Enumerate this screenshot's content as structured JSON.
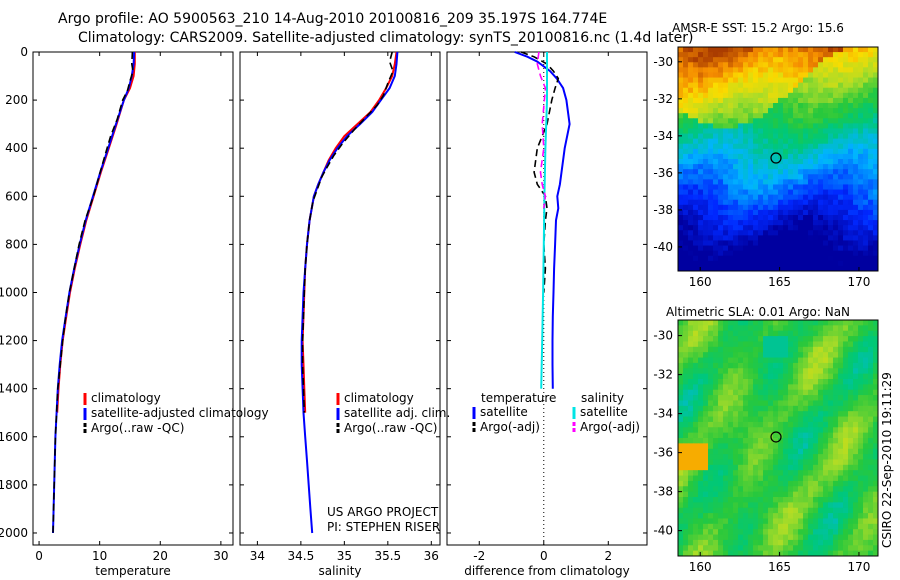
{
  "title_line1": "Argo profile: AO 5900563_210 14-Aug-2010 20100816_209 35.197S 164.774E",
  "title_line2": "Climatology: CARS2009. Satellite-adjusted climatology: synTS_20100816.nc (1.4d later)",
  "side_text": "CSIRO 22-Sep-2010 19:11:29",
  "colors": {
    "clim": "#ff0000",
    "sat": "#0000ff",
    "argo": "#000000",
    "tsat": "#00e5e5",
    "targo": "#ff00ff"
  },
  "chart_data": [
    {
      "type": "line",
      "id": "temperature",
      "xlabel": "temperature",
      "xlim": [
        -1,
        32
      ],
      "ylim": [
        2050,
        0
      ],
      "xticks": [
        0,
        10,
        20,
        30
      ],
      "yticks": [
        0,
        200,
        400,
        600,
        800,
        1000,
        1200,
        1400,
        1600,
        1800,
        2000
      ],
      "series": [
        {
          "name": "climatology",
          "color": "clim",
          "points": [
            [
              15.8,
              0
            ],
            [
              15.8,
              50
            ],
            [
              15.6,
              100
            ],
            [
              15.0,
              150
            ],
            [
              14.0,
              200
            ],
            [
              12.8,
              300
            ],
            [
              11.5,
              400
            ],
            [
              10.2,
              500
            ],
            [
              9.0,
              600
            ],
            [
              7.8,
              700
            ],
            [
              6.8,
              800
            ],
            [
              5.9,
              900
            ],
            [
              5.1,
              1000
            ],
            [
              4.5,
              1100
            ],
            [
              3.9,
              1200
            ],
            [
              3.5,
              1300
            ],
            [
              3.2,
              1400
            ],
            [
              3.0,
              1500
            ]
          ]
        },
        {
          "name": "satellite-adjusted climatology",
          "color": "sat",
          "points": [
            [
              15.7,
              0
            ],
            [
              15.6,
              50
            ],
            [
              15.3,
              100
            ],
            [
              14.8,
              150
            ],
            [
              14.0,
              200
            ],
            [
              12.7,
              300
            ],
            [
              11.4,
              400
            ],
            [
              10.1,
              500
            ],
            [
              8.9,
              600
            ],
            [
              7.7,
              700
            ],
            [
              6.7,
              800
            ],
            [
              5.8,
              900
            ],
            [
              5.0,
              1000
            ],
            [
              4.4,
              1100
            ],
            [
              3.8,
              1200
            ],
            [
              3.4,
              1300
            ],
            [
              3.1,
              1400
            ],
            [
              2.9,
              1500
            ],
            [
              2.7,
              1600
            ],
            [
              2.6,
              1700
            ],
            [
              2.5,
              1800
            ],
            [
              2.4,
              1900
            ],
            [
              2.3,
              2000
            ]
          ]
        },
        {
          "name": "Argo(..raw -QC)",
          "color": "argo",
          "dashed": true,
          "points": [
            [
              15.4,
              0
            ],
            [
              15.3,
              50
            ],
            [
              15.5,
              80
            ],
            [
              15.0,
              120
            ],
            [
              14.6,
              160
            ],
            [
              13.8,
              200
            ],
            [
              12.9,
              280
            ],
            [
              11.8,
              350
            ],
            [
              11.0,
              420
            ],
            [
              10.3,
              480
            ],
            [
              9.2,
              580
            ],
            [
              8.7,
              620
            ],
            [
              7.6,
              700
            ],
            [
              6.6,
              800
            ],
            [
              5.8,
              900
            ],
            [
              5.0,
              1000
            ],
            [
              4.4,
              1100
            ],
            [
              3.9,
              1200
            ],
            [
              3.5,
              1300
            ],
            [
              3.1,
              1400
            ],
            [
              2.9,
              1500
            ],
            [
              2.7,
              1600
            ],
            [
              2.6,
              1700
            ],
            [
              2.5,
              1800
            ],
            [
              2.4,
              1900
            ],
            [
              2.3,
              2000
            ]
          ]
        }
      ],
      "legend": [
        "climatology",
        "satellite-adjusted climatology",
        "Argo(..raw -QC)"
      ]
    },
    {
      "type": "line",
      "id": "salinity",
      "xlabel": "salinity",
      "xlim": [
        33.8,
        36.1
      ],
      "ylim": [
        2050,
        0
      ],
      "xticks": [
        34,
        34.5,
        35,
        35.5,
        36
      ],
      "series": [
        {
          "name": "climatology",
          "color": "clim",
          "points": [
            [
              35.6,
              0
            ],
            [
              35.58,
              50
            ],
            [
              35.55,
              100
            ],
            [
              35.48,
              150
            ],
            [
              35.4,
              200
            ],
            [
              35.3,
              250
            ],
            [
              35.15,
              300
            ],
            [
              35.0,
              350
            ],
            [
              34.9,
              400
            ],
            [
              34.82,
              450
            ],
            [
              34.76,
              500
            ],
            [
              34.7,
              550
            ],
            [
              34.65,
              600
            ],
            [
              34.6,
              700
            ],
            [
              34.57,
              800
            ],
            [
              34.55,
              900
            ],
            [
              34.54,
              1000
            ],
            [
              34.53,
              1100
            ],
            [
              34.52,
              1200
            ],
            [
              34.53,
              1300
            ],
            [
              34.54,
              1400
            ],
            [
              34.55,
              1500
            ]
          ]
        },
        {
          "name": "satellite adj. clim.",
          "color": "sat",
          "points": [
            [
              35.61,
              0
            ],
            [
              35.6,
              50
            ],
            [
              35.58,
              100
            ],
            [
              35.52,
              150
            ],
            [
              35.42,
              200
            ],
            [
              35.32,
              250
            ],
            [
              35.18,
              300
            ],
            [
              35.03,
              350
            ],
            [
              34.92,
              400
            ],
            [
              34.83,
              450
            ],
            [
              34.76,
              500
            ],
            [
              34.7,
              550
            ],
            [
              34.65,
              600
            ],
            [
              34.6,
              700
            ],
            [
              34.57,
              800
            ],
            [
              34.55,
              900
            ],
            [
              34.53,
              1000
            ],
            [
              34.52,
              1100
            ],
            [
              34.51,
              1200
            ],
            [
              34.51,
              1300
            ],
            [
              34.52,
              1400
            ],
            [
              34.53,
              1500
            ],
            [
              34.55,
              1600
            ],
            [
              34.57,
              1700
            ],
            [
              34.59,
              1800
            ],
            [
              34.61,
              1900
            ],
            [
              34.63,
              2000
            ]
          ]
        },
        {
          "name": "Argo(..raw -QC)",
          "color": "argo",
          "dashed": true,
          "points": [
            [
              35.55,
              0
            ],
            [
              35.52,
              40
            ],
            [
              35.56,
              80
            ],
            [
              35.5,
              130
            ],
            [
              35.45,
              180
            ],
            [
              35.38,
              220
            ],
            [
              35.25,
              270
            ],
            [
              35.12,
              320
            ],
            [
              34.98,
              380
            ],
            [
              34.88,
              430
            ],
            [
              34.8,
              480
            ],
            [
              34.74,
              520
            ],
            [
              34.68,
              580
            ],
            [
              34.64,
              620
            ],
            [
              34.6,
              700
            ],
            [
              34.57,
              800
            ],
            [
              34.55,
              900
            ],
            [
              34.54,
              1000
            ],
            [
              34.53,
              1100
            ],
            [
              34.52,
              1200
            ],
            [
              34.52,
              1300
            ],
            [
              34.53,
              1400
            ],
            [
              34.54,
              1500
            ]
          ]
        }
      ],
      "legend": [
        "climatology",
        "satellite adj. clim.",
        "Argo(..raw -QC)"
      ],
      "note_line1": "US ARGO PROJECT",
      "note_line2": "PI: STEPHEN RISER"
    },
    {
      "type": "line",
      "id": "difference",
      "xlabel": "difference from climatology",
      "xlim": [
        -3,
        3.2
      ],
      "ylim": [
        2050,
        0
      ],
      "xticks": [
        -2,
        0,
        2
      ],
      "zero_line": 0,
      "series": [
        {
          "name": "temperature satellite",
          "color": "sat",
          "points": [
            [
              -0.9,
              0
            ],
            [
              -0.5,
              20
            ],
            [
              -0.2,
              40
            ],
            [
              0.2,
              80
            ],
            [
              0.4,
              110
            ],
            [
              0.6,
              150
            ],
            [
              0.7,
              200
            ],
            [
              0.8,
              300
            ],
            [
              0.65,
              400
            ],
            [
              0.6,
              450
            ],
            [
              0.55,
              500
            ],
            [
              0.5,
              550
            ],
            [
              0.42,
              600
            ],
            [
              0.45,
              650
            ],
            [
              0.38,
              700
            ],
            [
              0.35,
              800
            ],
            [
              0.32,
              900
            ],
            [
              0.3,
              1000
            ],
            [
              0.28,
              1100
            ],
            [
              0.27,
              1200
            ],
            [
              0.27,
              1300
            ],
            [
              0.28,
              1400
            ]
          ]
        },
        {
          "name": "temperature Argo(-adj)",
          "color": "argo",
          "dashed": true,
          "points": [
            [
              -0.7,
              0
            ],
            [
              -0.3,
              20
            ],
            [
              0.1,
              50
            ],
            [
              0.3,
              80
            ],
            [
              0.45,
              110
            ],
            [
              0.35,
              150
            ],
            [
              0.25,
              200
            ],
            [
              0.1,
              300
            ],
            [
              -0.2,
              400
            ],
            [
              -0.25,
              450
            ],
            [
              -0.3,
              500
            ],
            [
              -0.2,
              550
            ],
            [
              0.05,
              600
            ],
            [
              0.1,
              650
            ],
            [
              0.05,
              700
            ],
            [
              0.0,
              800
            ],
            [
              0.05,
              900
            ],
            [
              0.0,
              1000
            ]
          ]
        },
        {
          "name": "salinity satellite",
          "color": "tsat",
          "points": [
            [
              0.1,
              0
            ],
            [
              0.1,
              100
            ],
            [
              0.1,
              200
            ],
            [
              0.05,
              400
            ],
            [
              0.02,
              600
            ],
            [
              0.0,
              800
            ],
            [
              -0.02,
              1000
            ],
            [
              -0.05,
              1200
            ],
            [
              -0.08,
              1400
            ]
          ]
        },
        {
          "name": "salinity Argo(-adj)",
          "color": "targo",
          "dashed": true,
          "points": [
            [
              -0.15,
              0
            ],
            [
              -0.2,
              50
            ],
            [
              -0.1,
              100
            ],
            [
              0.05,
              150
            ],
            [
              0.02,
              200
            ],
            [
              -0.05,
              300
            ],
            [
              0.0,
              400
            ],
            [
              -0.1,
              500
            ],
            [
              -0.05,
              550
            ],
            [
              0.05,
              600
            ],
            [
              0.0,
              650
            ]
          ]
        }
      ],
      "legend_head_left": "temperature",
      "legend_head_right": "salinity",
      "legend_left": [
        "satellite",
        "Argo(-adj)"
      ],
      "legend_right": [
        "satellite",
        "Argo(-adj)"
      ]
    },
    {
      "type": "heatmap",
      "id": "sst",
      "title": "AMSR-E SST: 15.2  Argo: 15.6",
      "xlim": [
        158.6,
        171.2
      ],
      "ylim": [
        -41.3,
        -29.2
      ],
      "xticks": [
        160,
        165,
        170
      ],
      "yticks": [
        -30,
        -32,
        -34,
        -36,
        -38,
        -40
      ],
      "marker": [
        164.774,
        -35.197
      ]
    },
    {
      "type": "heatmap",
      "id": "sla",
      "title": "Altimetric SLA: 0.01  Argo: NaN",
      "xlim": [
        158.6,
        171.2
      ],
      "ylim": [
        -41.3,
        -29.2
      ],
      "xticks": [
        160,
        165,
        170
      ],
      "yticks": [
        -30,
        -32,
        -34,
        -36,
        -38,
        -40
      ],
      "marker": [
        164.774,
        -35.197
      ]
    }
  ]
}
